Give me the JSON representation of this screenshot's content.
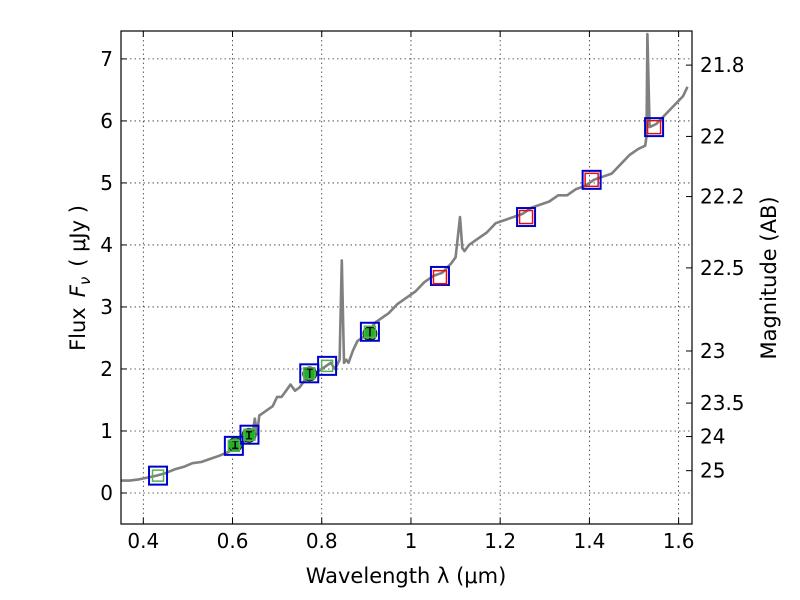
{
  "chart_data": {
    "type": "scatter",
    "xlabel": "Wavelength  λ (μm)",
    "ylabel": "Flux  F_ν  ( μJy )",
    "ylabel_parts": {
      "prefix": "Flux",
      "symbol": "F",
      "subscript": "ν",
      "unit": "( μJy )"
    },
    "y2label": "Magnitude (AB)",
    "xlim": [
      0.35,
      1.63
    ],
    "ylim": [
      -0.5,
      7.45
    ],
    "grid": true,
    "xticks": [
      0.4,
      0.6,
      0.8,
      1.0,
      1.2,
      1.4,
      1.6
    ],
    "xtick_labels": [
      "0.4",
      "0.6",
      "0.8",
      "1",
      "1.2",
      "1.4",
      "1.6"
    ],
    "yticks": [
      0,
      1,
      2,
      3,
      4,
      5,
      6,
      7
    ],
    "ytick_labels": [
      "0",
      "1",
      "2",
      "3",
      "4",
      "5",
      "6",
      "7"
    ],
    "y2ticks": [
      {
        "label": "21.8",
        "flux": 6.9
      },
      {
        "label": "22",
        "flux": 5.75
      },
      {
        "label": "22.2",
        "flux": 4.78
      },
      {
        "label": "22.5",
        "flux": 3.63
      },
      {
        "label": "23",
        "flux": 2.29
      },
      {
        "label": "23.5",
        "flux": 1.45
      },
      {
        "label": "24",
        "flux": 0.91
      },
      {
        "label": "25",
        "flux": 0.36
      }
    ],
    "series": [
      {
        "kind": "line",
        "color": "#808080",
        "x": [
          0.35,
          0.37,
          0.39,
          0.41,
          0.43,
          0.45,
          0.47,
          0.49,
          0.51,
          0.53,
          0.55,
          0.57,
          0.59,
          0.61,
          0.62,
          0.635,
          0.645,
          0.65,
          0.655,
          0.66,
          0.67,
          0.68,
          0.69,
          0.7,
          0.71,
          0.72,
          0.73,
          0.74,
          0.75,
          0.76,
          0.77,
          0.78,
          0.79,
          0.8,
          0.81,
          0.82,
          0.83,
          0.84,
          0.845,
          0.85,
          0.855,
          0.86,
          0.87,
          0.88,
          0.89,
          0.9,
          0.91,
          0.92,
          0.93,
          0.95,
          0.97,
          0.99,
          1.01,
          1.03,
          1.05,
          1.07,
          1.09,
          1.1,
          1.11,
          1.115,
          1.12,
          1.13,
          1.15,
          1.17,
          1.19,
          1.21,
          1.23,
          1.25,
          1.27,
          1.29,
          1.31,
          1.33,
          1.35,
          1.37,
          1.39,
          1.41,
          1.43,
          1.45,
          1.47,
          1.49,
          1.51,
          1.525,
          1.528,
          1.53,
          1.535,
          1.55,
          1.57,
          1.59,
          1.61,
          1.62
        ],
        "y": [
          0.2,
          0.2,
          0.22,
          0.25,
          0.28,
          0.32,
          0.38,
          0.42,
          0.48,
          0.5,
          0.55,
          0.6,
          0.66,
          0.75,
          0.82,
          0.85,
          0.95,
          1.2,
          0.95,
          1.25,
          1.3,
          1.35,
          1.4,
          1.55,
          1.55,
          1.65,
          1.75,
          1.65,
          1.7,
          1.8,
          1.9,
          1.95,
          1.95,
          2.0,
          2.05,
          2.1,
          2.0,
          2.15,
          3.75,
          2.1,
          2.15,
          2.1,
          2.3,
          2.45,
          2.5,
          2.55,
          2.65,
          2.75,
          2.8,
          2.9,
          3.05,
          3.15,
          3.25,
          3.4,
          3.5,
          3.55,
          3.7,
          3.8,
          4.45,
          3.95,
          3.9,
          4.0,
          4.1,
          4.2,
          4.35,
          4.4,
          4.45,
          4.5,
          4.6,
          4.65,
          4.7,
          4.8,
          4.8,
          4.9,
          4.95,
          5.05,
          5.1,
          5.15,
          5.3,
          5.45,
          5.55,
          5.6,
          5.75,
          7.4,
          5.9,
          5.95,
          6.1,
          6.25,
          6.4,
          6.55
        ]
      },
      {
        "kind": "points",
        "marker": "circle",
        "color": "#22b02a",
        "x": [
          0.606,
          0.637,
          0.773,
          0.908
        ],
        "y": [
          0.78,
          0.93,
          1.92,
          2.57
        ],
        "yerr": [
          0.06,
          0.06,
          0.08,
          0.1
        ]
      },
      {
        "kind": "points",
        "marker": "open-square-blue",
        "color": "#0000cc",
        "x": [
          0.433,
          0.603,
          0.638,
          0.772,
          0.812,
          0.908,
          1.065,
          1.258,
          1.405,
          1.545
        ],
        "y": [
          0.28,
          0.76,
          0.94,
          1.93,
          2.05,
          2.6,
          3.5,
          4.45,
          5.05,
          5.9
        ]
      },
      {
        "kind": "points",
        "marker": "open-square-red",
        "color": "#e01010",
        "x": [
          1.065,
          1.258,
          1.405,
          1.545
        ],
        "y": [
          3.48,
          4.45,
          5.05,
          5.9
        ]
      },
      {
        "kind": "points",
        "marker": "open-square-green",
        "color": "#55b055",
        "x": [
          0.433,
          0.603,
          0.638,
          0.772,
          0.812,
          0.908
        ],
        "y": [
          0.28,
          0.76,
          0.94,
          1.93,
          2.05,
          2.6
        ]
      }
    ]
  }
}
